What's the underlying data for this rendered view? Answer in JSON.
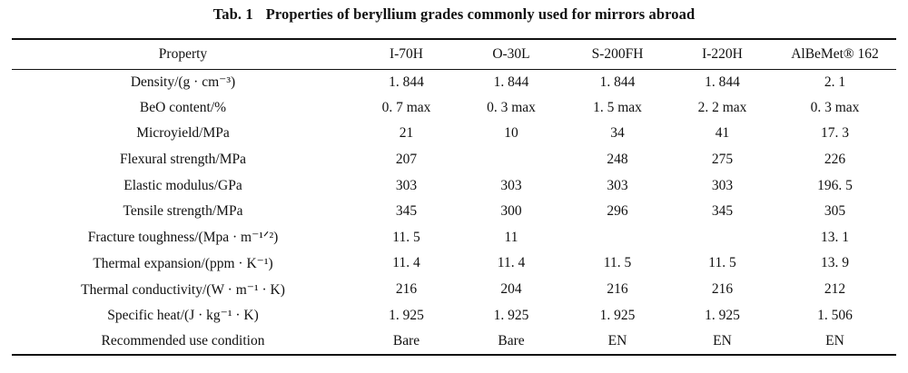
{
  "caption": {
    "label": "Tab. 1",
    "title": "Properties of beryllium grades commonly used for mirrors abroad"
  },
  "table": {
    "headers": [
      "Property",
      "I-70H",
      "O-30L",
      "S-200FH",
      "I-220H",
      "AlBeMet® 162"
    ],
    "rows": [
      [
        "Density/(g · cm⁻³)",
        "1. 844",
        "1. 844",
        "1. 844",
        "1. 844",
        "2. 1"
      ],
      [
        "BeO content/%",
        "0. 7 max",
        "0. 3 max",
        "1. 5 max",
        "2. 2 max",
        "0. 3 max"
      ],
      [
        "Microyield/MPa",
        "21",
        "10",
        "34",
        "41",
        "17. 3"
      ],
      [
        "Flexural strength/MPa",
        "207",
        "",
        "248",
        "275",
        "226"
      ],
      [
        "Elastic modulus/GPa",
        "303",
        "303",
        "303",
        "303",
        "196. 5"
      ],
      [
        "Tensile strength/MPa",
        "345",
        "300",
        "296",
        "345",
        "305"
      ],
      [
        "Fracture toughness/(Mpa · m⁻¹ᐟ²)",
        "11. 5",
        "11",
        "",
        "",
        "13. 1"
      ],
      [
        "Thermal expansion/(ppm · K⁻¹)",
        "11. 4",
        "11. 4",
        "11. 5",
        "11. 5",
        "13. 9"
      ],
      [
        "Thermal conductivity/(W · m⁻¹ · K)",
        "216",
        "204",
        "216",
        "216",
        "212"
      ],
      [
        "Specific heat/(J · kg⁻¹ · K)",
        "1. 925",
        "1. 925",
        "1. 925",
        "1. 925",
        "1. 506"
      ],
      [
        "Recommended use condition",
        "Bare",
        "Bare",
        "EN",
        "EN",
        "EN"
      ]
    ]
  }
}
